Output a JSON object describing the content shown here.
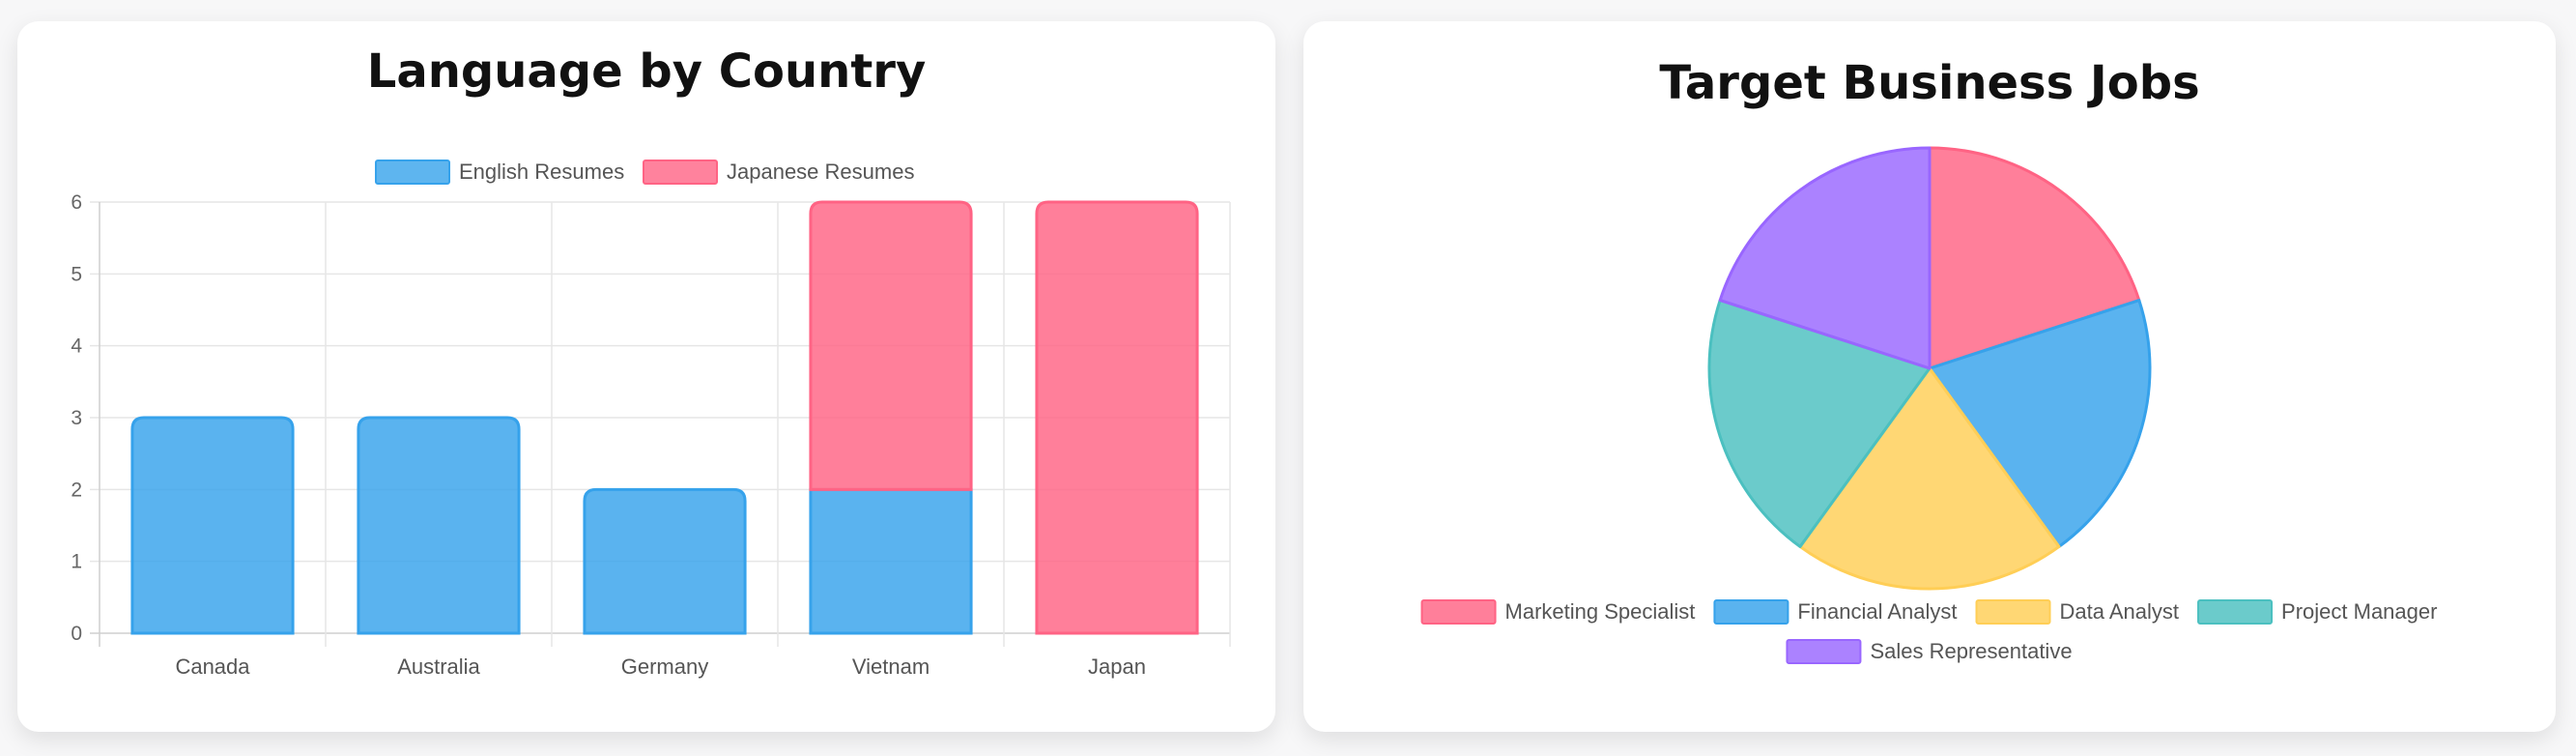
{
  "colors": {
    "english": "#36a2eb",
    "japanese": "#ff6384",
    "marketing": "#ff6384",
    "financial": "#36a2eb",
    "data": "#ffce56",
    "project": "#4bc0c0",
    "sales": "#9966ff"
  },
  "chart_data": [
    {
      "type": "bar",
      "stacked": true,
      "title": "Language by Country",
      "categories": [
        "Canada",
        "Australia",
        "Germany",
        "Vietnam",
        "Japan"
      ],
      "series": [
        {
          "name": "English Resumes",
          "values": [
            3,
            3,
            2,
            2,
            0
          ]
        },
        {
          "name": "Japanese Resumes",
          "values": [
            0,
            0,
            0,
            4,
            6
          ]
        }
      ],
      "ylim": [
        0,
        6
      ],
      "yticks": [
        "0",
        "1",
        "2",
        "3",
        "4",
        "5",
        "6"
      ],
      "xlabel": "",
      "ylabel": "",
      "grid": true,
      "legend_position": "top"
    },
    {
      "type": "pie",
      "title": "Target Business Jobs",
      "labels": [
        "Marketing Specialist",
        "Financial Analyst",
        "Data Analyst",
        "Project Manager",
        "Sales Representative"
      ],
      "values": [
        1,
        1,
        1,
        1,
        1
      ],
      "legend_position": "bottom"
    }
  ]
}
